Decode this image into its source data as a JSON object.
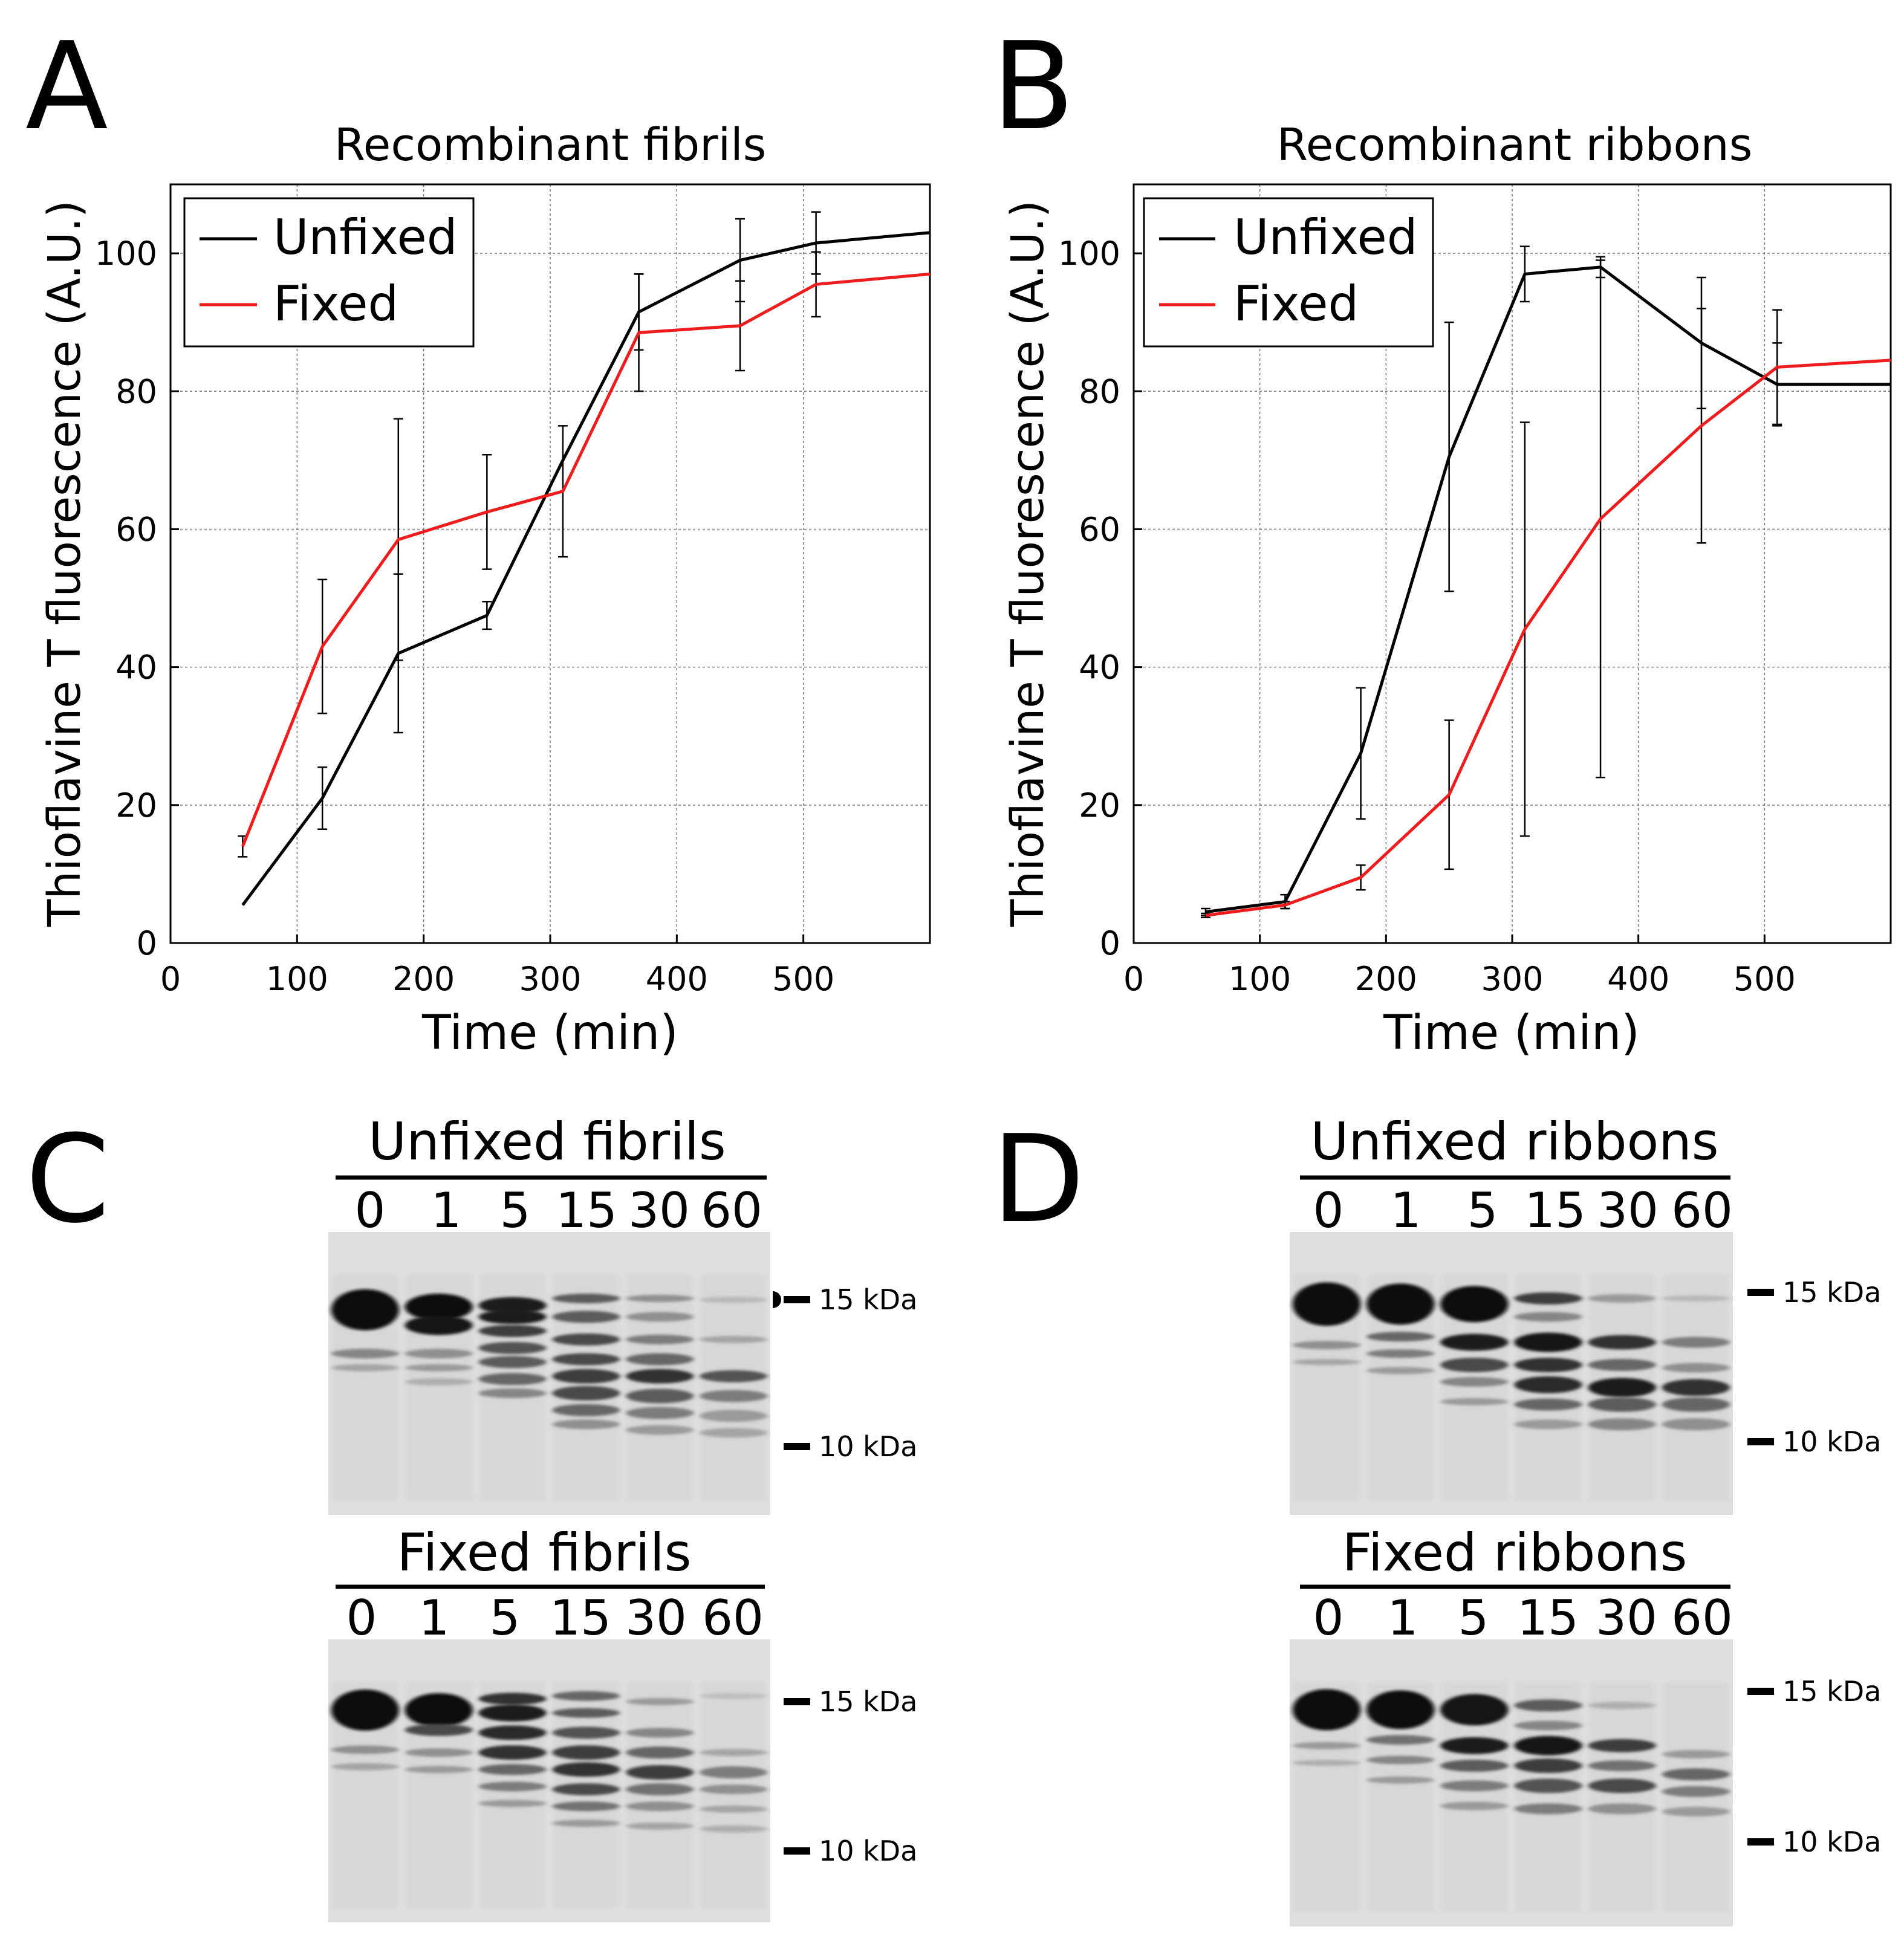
{
  "panels": {
    "A": {
      "letter": "A"
    },
    "B": {
      "letter": "B"
    },
    "C": {
      "letter": "C"
    },
    "D": {
      "letter": "D"
    }
  },
  "chart_data": [
    {
      "id": "A",
      "type": "line",
      "title": "Recombinant fibrils",
      "xlabel": "Time (min)",
      "ylabel": "Thioflavine T fluorescence (A.U.)",
      "xlim": [
        0,
        600
      ],
      "ylim": [
        0,
        110
      ],
      "xticks": [
        0,
        100,
        200,
        300,
        400,
        500
      ],
      "yticks": [
        0,
        20,
        40,
        60,
        80,
        100
      ],
      "grid": true,
      "legend": "top-left",
      "series": [
        {
          "name": "Unfixed",
          "color": "#000000",
          "x": [
            57,
            120,
            180,
            250,
            310,
            370,
            450,
            510,
            600
          ],
          "y": [
            5.5,
            21,
            42,
            47.5,
            70,
            91.5,
            99,
            101.5,
            103
          ],
          "err": [
            0,
            4.5,
            11.5,
            2,
            0,
            5.5,
            6,
            4.5,
            0
          ]
        },
        {
          "name": "Fixed",
          "color": "#ee1c1c",
          "x": [
            57,
            120,
            180,
            250,
            310,
            370,
            450,
            510,
            600
          ],
          "y": [
            14,
            43,
            58.5,
            62.5,
            65.5,
            88.5,
            89.5,
            95.5,
            97
          ],
          "err": [
            1.5,
            9.7,
            17.5,
            8.3,
            9.5,
            8.5,
            6.5,
            4.7,
            0
          ]
        }
      ]
    },
    {
      "id": "B",
      "type": "line",
      "title": "Recombinant ribbons",
      "xlabel": "Time (min)",
      "ylabel": "Thioflavine T fluorescence (A.U.)",
      "xlim": [
        0,
        600
      ],
      "ylim": [
        0,
        110
      ],
      "xticks": [
        0,
        100,
        200,
        300,
        400,
        500
      ],
      "yticks": [
        0,
        20,
        40,
        60,
        80,
        100
      ],
      "grid": true,
      "legend": "top-left",
      "series": [
        {
          "name": "Unfixed",
          "color": "#000000",
          "x": [
            57,
            120,
            180,
            250,
            310,
            370,
            450,
            510,
            600
          ],
          "y": [
            4.5,
            6,
            27.5,
            70.5,
            97,
            98,
            87,
            81,
            81
          ],
          "err": [
            0.5,
            1,
            9.5,
            19.5,
            4,
            1.5,
            9.5,
            6,
            0
          ]
        },
        {
          "name": "Fixed",
          "color": "#ee1c1c",
          "x": [
            57,
            120,
            180,
            250,
            310,
            370,
            450,
            510,
            600
          ],
          "y": [
            4,
            5.5,
            9.5,
            21.5,
            45.5,
            61.5,
            75,
            83.5,
            84.5
          ],
          "err": [
            0.3,
            0.5,
            1.8,
            10.8,
            30,
            37.5,
            17,
            8.3,
            0
          ]
        }
      ]
    }
  ],
  "gels": {
    "C": {
      "top": {
        "title": "Unfixed fibrils",
        "lanes": [
          "0",
          "1",
          "5",
          "15",
          "30",
          "60"
        ],
        "markers": [
          "15 kDa",
          "10 kDa"
        ]
      },
      "bottom": {
        "title": "Fixed fibrils",
        "lanes": [
          "0",
          "1",
          "5",
          "15",
          "30",
          "60"
        ],
        "markers": [
          "15 kDa",
          "10 kDa"
        ]
      }
    },
    "D": {
      "top": {
        "title": "Unfixed ribbons",
        "lanes": [
          "0",
          "1",
          "5",
          "15",
          "30",
          "60"
        ],
        "markers": [
          "15 kDa",
          "10 kDa"
        ]
      },
      "bottom": {
        "title": "Fixed ribbons",
        "lanes": [
          "0",
          "1",
          "5",
          "15",
          "30",
          "60"
        ],
        "markers": [
          "15 kDa",
          "10 kDa"
        ]
      }
    }
  }
}
